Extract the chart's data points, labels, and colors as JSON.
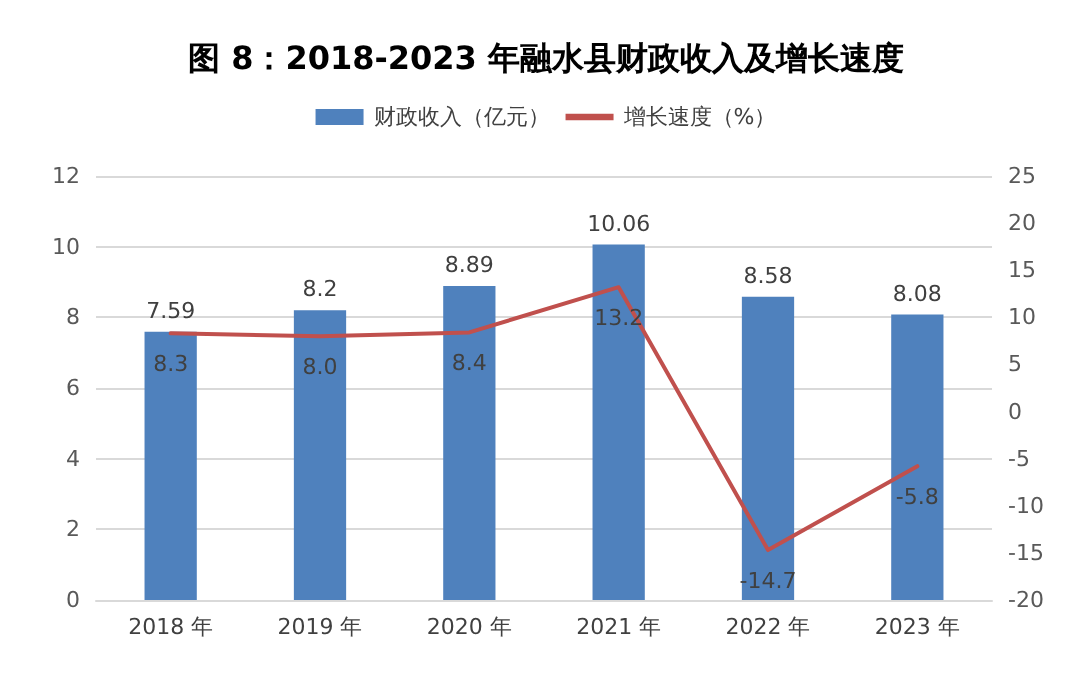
{
  "chart_data": {
    "type": "bar",
    "title": "图 8：2018-2023 年融水县财政收入及增长速度",
    "categories": [
      "2018 年",
      "2019 年",
      "2020 年",
      "2021 年",
      "2022 年",
      "2023 年"
    ],
    "series": [
      {
        "name": "财政收入（亿元）",
        "color": "#4f81bd",
        "values": [
          7.59,
          8.2,
          8.89,
          10.06,
          8.58,
          8.08
        ]
      },
      {
        "name": "增长速度（%）",
        "type": "line",
        "axis": "y2",
        "color": "#c0504d",
        "values": [
          8.3,
          8.0,
          8.4,
          13.2,
          -14.7,
          -5.8
        ],
        "value_labels": [
          "8.3",
          "8.0",
          "8.4",
          "13.2",
          "-14.7",
          "-5.8"
        ]
      }
    ],
    "ylim": [
      0,
      12
    ],
    "yticks": [
      0,
      2,
      4,
      6,
      8,
      10,
      12
    ],
    "y2lim": [
      -20,
      25
    ],
    "y2ticks": [
      -20,
      -15,
      -10,
      -5,
      0,
      5,
      10,
      15,
      20,
      25
    ],
    "grid": "y",
    "legend": "top",
    "data_labels": true,
    "marker": "none",
    "line_style": "solid"
  }
}
